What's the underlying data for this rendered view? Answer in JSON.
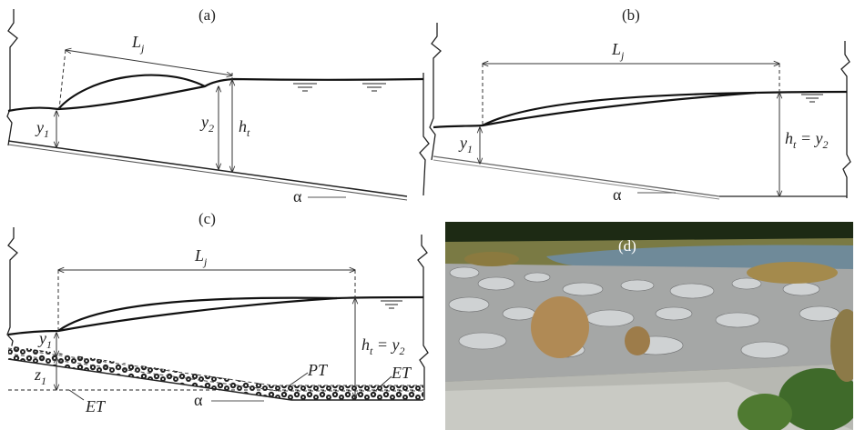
{
  "panels": {
    "a": {
      "label": "(a)",
      "jump_length": {
        "main": "L",
        "sub": "j"
      },
      "y1": {
        "main": "y",
        "sub": "1"
      },
      "y2": {
        "main": "y",
        "sub": "2"
      },
      "ht": {
        "main": "h",
        "sub": "t"
      },
      "angle": "α"
    },
    "b": {
      "label": "(b)",
      "jump_length": {
        "main": "L",
        "sub": "j"
      },
      "y1": {
        "main": "y",
        "sub": "1"
      },
      "ht_eq": {
        "h": "h",
        "h_sub": "t",
        "eq": " = y",
        "y_sub": "2"
      },
      "angle": "α"
    },
    "c": {
      "label": "(c)",
      "jump_length": {
        "main": "L",
        "sub": "j"
      },
      "y1": {
        "main": "y",
        "sub": "1"
      },
      "z1": {
        "main": "z",
        "sub": "1"
      },
      "ht_eq": {
        "h": "h",
        "h_sub": "t",
        "eq": " = y",
        "y_sub": "2"
      },
      "pt": "PT",
      "et_right": "ET",
      "et_left": "ET",
      "angle": "α"
    },
    "d": {
      "label": "(d)",
      "photo_colors": {
        "sky": "#1d2a14",
        "water": "#6f8a99",
        "rock": "#9aa0a3",
        "grass": "#b08a55",
        "green": "#3f6a2a"
      }
    }
  }
}
